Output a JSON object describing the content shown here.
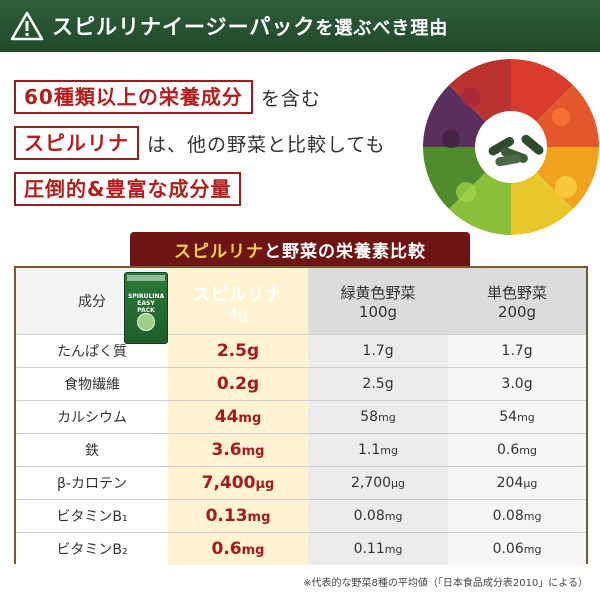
{
  "banner": {
    "title_main": "スピルリナイージーパック",
    "title_tail": "を選ぶべき理由"
  },
  "headline": {
    "line1_box": "60種類以上の栄養成分",
    "line1_plain": "を含む",
    "line2_box": "スピルリナ",
    "line2_plain": "は、他の野菜と比較しても",
    "line3_box": "圧倒的&豊富な成分量"
  },
  "ribbon": {
    "highlight": "スピルリナ",
    "rest": "と野菜の栄養素比較"
  },
  "product": {
    "label": "SPIRULINA EASY PACK"
  },
  "table": {
    "header": {
      "component": "成分",
      "spirulina_name": "スピルリナ",
      "spirulina_amount": "4g",
      "green_veg_name": "緑黄色野菜",
      "green_veg_amount": "100g",
      "single_veg_name": "単色野菜",
      "single_veg_amount": "200g"
    },
    "rows": [
      {
        "name": "たんぱく質",
        "sp": "2.5",
        "sp_unit": "g",
        "gv": "1.7",
        "gv_unit": "g",
        "sv": "1.7",
        "sv_unit": "g"
      },
      {
        "name": "食物繊維",
        "sp": "0.2",
        "sp_unit": "g",
        "gv": "2.5",
        "gv_unit": "g",
        "sv": "3.0",
        "sv_unit": "g"
      },
      {
        "name": "カルシウム",
        "sp": "44",
        "sp_unit": "mg",
        "gv": "58",
        "gv_unit": "mg",
        "sv": "54",
        "sv_unit": "mg"
      },
      {
        "name": "鉄",
        "sp": "3.6",
        "sp_unit": "mg",
        "gv": "1.1",
        "gv_unit": "mg",
        "sv": "0.6",
        "sv_unit": "mg"
      },
      {
        "name": "β-カロテン",
        "sp": "7,400",
        "sp_unit": "μg",
        "gv": "2,700",
        "gv_unit": "μg",
        "sv": "204",
        "sv_unit": "μg"
      },
      {
        "name": "ビタミンB₁",
        "sp": "0.13",
        "sp_unit": "mg",
        "gv": "0.08",
        "gv_unit": "mg",
        "sv": "0.08",
        "sv_unit": "mg"
      },
      {
        "name": "ビタミンB₂",
        "sp": "0.6",
        "sp_unit": "mg",
        "gv": "0.11",
        "gv_unit": "mg",
        "sv": "0.06",
        "sv_unit": "mg"
      }
    ]
  },
  "footnote": "※代表的な野菜8種の平均値（「日本食品成分表2010」による）",
  "colors": {
    "banner_green": "#214a2c",
    "accent_red": "#b01e1e",
    "ribbon_maroon": "#6e1414",
    "gold": "#c9a04a"
  }
}
